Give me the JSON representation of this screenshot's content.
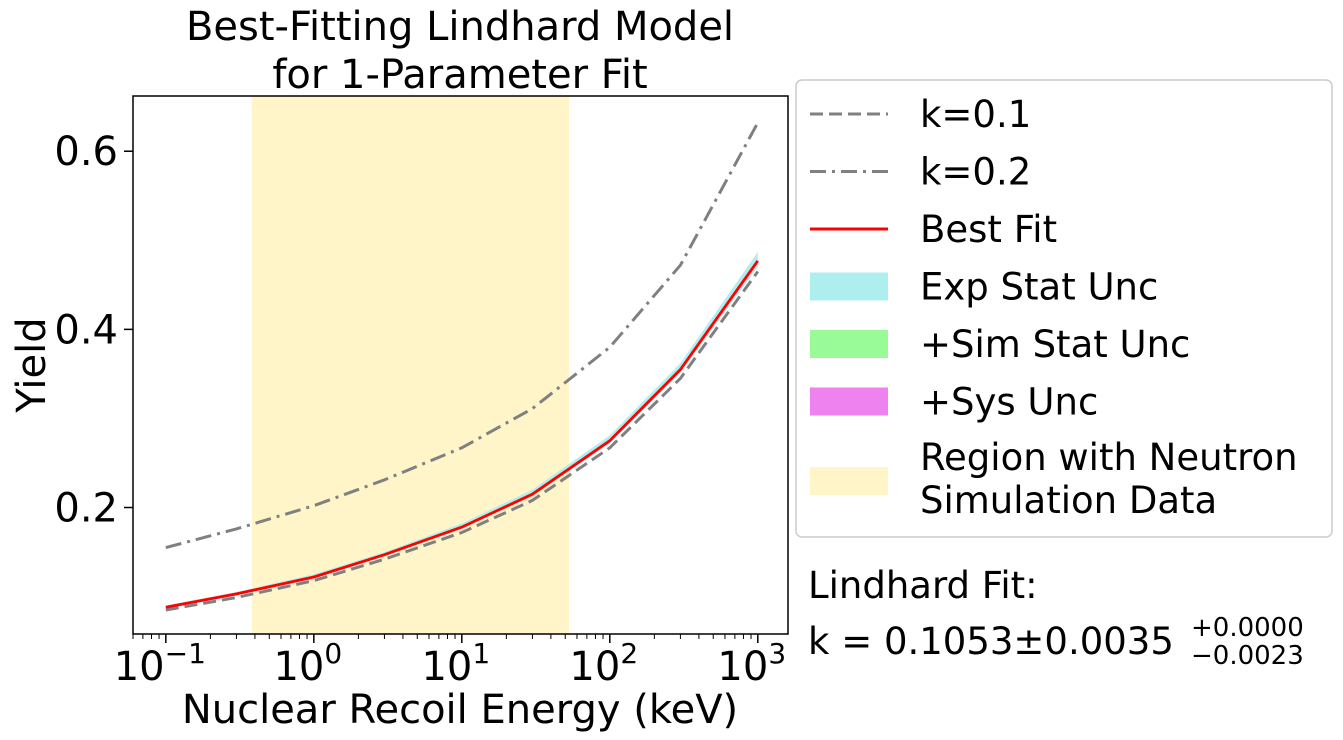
{
  "chart_data": {
    "type": "line",
    "title": [
      "Best-Fitting Lindhard Model",
      "for 1-Parameter Fit"
    ],
    "xlabel": "Nuclear Recoil Energy (keV)",
    "ylabel": "Yield",
    "xscale": "log",
    "xlim": [
      0.06,
      1600
    ],
    "ylim": [
      0.058,
      0.662
    ],
    "xticks": [
      {
        "value": 0.1,
        "base": "10",
        "exp": "−1"
      },
      {
        "value": 1,
        "base": "10",
        "exp": "0"
      },
      {
        "value": 10,
        "base": "10",
        "exp": "1"
      },
      {
        "value": 100,
        "base": "10",
        "exp": "2"
      },
      {
        "value": 1000,
        "base": "10",
        "exp": "3"
      }
    ],
    "yticks": [
      {
        "value": 0.2,
        "label": "0.2"
      },
      {
        "value": 0.4,
        "label": "0.4"
      },
      {
        "value": 0.6,
        "label": "0.6"
      }
    ],
    "x": [
      0.1,
      0.3,
      1,
      3,
      10,
      30,
      100,
      300,
      1000
    ],
    "series": [
      {
        "name": "k=0.1",
        "color": "#808080",
        "dash": "dashed",
        "values": [
          0.085,
          0.099,
          0.118,
          0.142,
          0.172,
          0.208,
          0.267,
          0.345,
          0.465
        ]
      },
      {
        "name": "k=0.2",
        "color": "#808080",
        "dash": "dashdot",
        "values": [
          0.155,
          0.176,
          0.202,
          0.231,
          0.267,
          0.311,
          0.38,
          0.472,
          0.632
        ]
      },
      {
        "name": "Best Fit",
        "color": "#ff0000",
        "dash": "solid",
        "values": [
          0.088,
          0.103,
          0.122,
          0.147,
          0.178,
          0.215,
          0.275,
          0.355,
          0.477
        ]
      }
    ],
    "bands": [
      {
        "name": "Exp Stat Unc",
        "color": "#afeeee",
        "lower": [
          0.087,
          0.101,
          0.12,
          0.145,
          0.176,
          0.213,
          0.272,
          0.351,
          0.47
        ],
        "upper": [
          0.09,
          0.105,
          0.125,
          0.15,
          0.182,
          0.22,
          0.281,
          0.362,
          0.487
        ]
      },
      {
        "name": "+Sim Stat Unc",
        "color": "#98fb98"
      },
      {
        "name": "+Sys Unc",
        "color": "#ee82ee"
      }
    ],
    "region": {
      "name": [
        "Region with Neutron",
        "Simulation Data"
      ],
      "color": "#fff5c8",
      "x0": 0.38,
      "x1": 53
    },
    "legend_position": "right-outside",
    "annotation": {
      "line1": "Lindhard Fit:",
      "prefix": "k = 0.1053±0.0035",
      "sup": "+0.0000",
      "sub": "−0.0023"
    }
  }
}
